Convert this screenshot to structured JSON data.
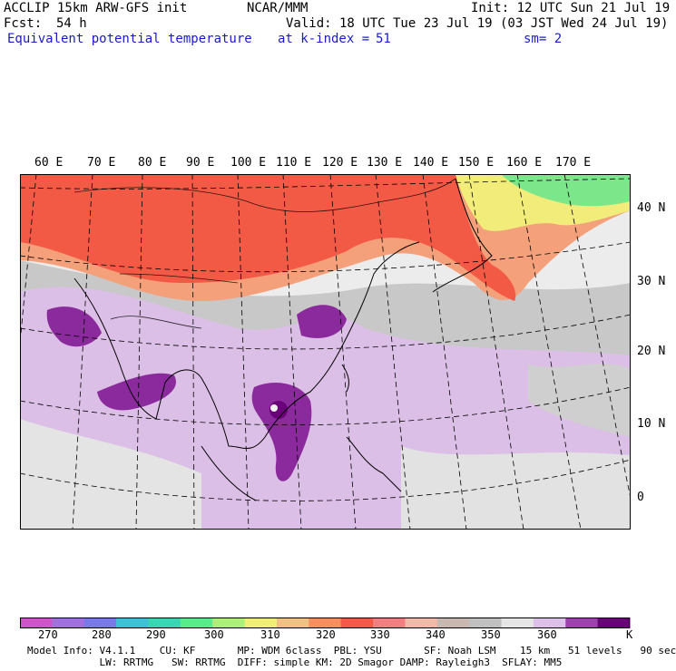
{
  "header": {
    "model": "ACCLIP 15km ARW-GFS init",
    "org": "NCAR/MMM",
    "init": "Init: 12 UTC Sun 21 Jul 19",
    "fcst_label": "Fcst:",
    "fcst_value": "54 h",
    "valid": "Valid: 18 UTC Tue 23 Jul 19 (03 JST Wed 24 Jul 19)",
    "field": "Equivalent potential temperature",
    "level": "at k-index =",
    "level_value": "51",
    "smooth": "sm= 2"
  },
  "map": {
    "lon_labels": [
      "60 E",
      "70 E",
      "80 E",
      "90 E",
      "100 E",
      "110 E",
      "120 E",
      "130 E",
      "140 E",
      "150 E",
      "160 E",
      "170 E"
    ],
    "lat_labels": [
      "40 N",
      "30 N",
      "20 N",
      "10 N",
      "0"
    ],
    "colors": {
      "hot": "#f25a46",
      "warm": "#f4a07a",
      "cool_yellow": "#f2ec7a",
      "green": "#7be68a",
      "gray": "#c8c8c8",
      "white": "#f0f0f0",
      "lilac": "#dcbfe6",
      "purple": "#8a2a9c",
      "dark_purple": "#6a007a"
    }
  },
  "colorbar": {
    "unit": "K",
    "labels": [
      "270",
      "280",
      "290",
      "300",
      "310",
      "320",
      "330",
      "340",
      "350",
      "360"
    ],
    "colors": [
      "#cc55cc",
      "#a070dd",
      "#7a7ae6",
      "#40c0d8",
      "#3ad6b4",
      "#5aec88",
      "#aaf07a",
      "#eeee78",
      "#f2c080",
      "#f6905a",
      "#f25a46",
      "#f08080",
      "#f2b8a8",
      "#c8b8b0",
      "#c0c0c0",
      "#e6e6e6",
      "#dcc0ea",
      "#a040b0",
      "#6a007a"
    ]
  },
  "model_info": {
    "line1": "Model Info: V4.1.1    CU: KF       MP: WDM 6class  PBL: YSU       SF: Noah LSM    15 km   51 levels   90 sec",
    "line2": "            LW: RRTMG   SW: RRTMG  DIFF: simple KM: 2D Smagor DAMP: Rayleigh3  SFLAY: MM5"
  }
}
